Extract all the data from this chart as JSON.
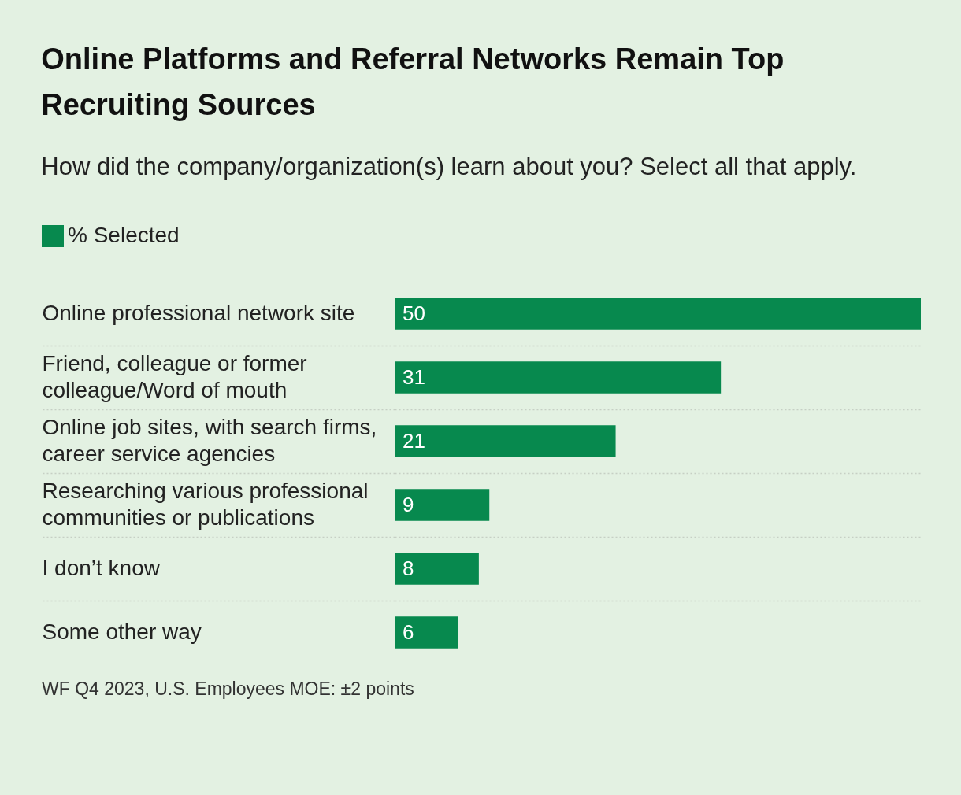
{
  "chart_data": {
    "type": "bar",
    "orientation": "horizontal",
    "title": "Online Platforms and Referral Networks Remain Top Recruiting Sources",
    "subtitle": "How did the company/organization(s) learn about you? Select all that apply.",
    "categories": [
      "Online professional network site",
      "Friend, colleague or former colleague/Word of mouth",
      "Online job sites, with search firms, career service agencies",
      "Researching various professional communities or publications",
      "I don’t know",
      "Some other way"
    ],
    "series": [
      {
        "name": "% Selected",
        "color": "#07894e",
        "values": [
          50,
          31,
          21,
          9,
          8,
          6
        ]
      }
    ],
    "data_labels": true,
    "legend": "top left",
    "grid": "y",
    "annotations": [
      "WF Q4 2023, U.S. Employees MOE: ±2 points"
    ]
  }
}
